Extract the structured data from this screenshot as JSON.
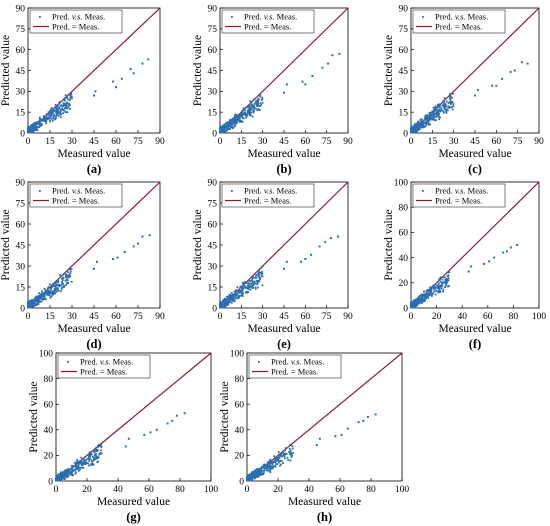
{
  "legend": {
    "scatter_label_pre": "Pred. ",
    "scatter_label_italic": "v.s.",
    "scatter_label_post": " Meas.",
    "line_label": "Pred.  =  Meas."
  },
  "colors": {
    "scatter": "#2a6fb0",
    "line": "#8b1a2b",
    "axis": "#000000"
  },
  "chart_data": [
    {
      "type": "scatter",
      "panel": "(a)",
      "xlabel": "Measured value",
      "ylabel": "Predicted value",
      "xlim": [
        0,
        90
      ],
      "ylim": [
        0,
        90
      ],
      "xticks": [
        "0",
        "15",
        "30",
        "45",
        "60",
        "75",
        "90"
      ],
      "yticks": [
        "0",
        "15",
        "30",
        "45",
        "60",
        "75",
        "90"
      ],
      "series": [
        {
          "name": "Pred. v.s. Meas.",
          "kind": "points",
          "cluster_max": 30,
          "points": [
            [
              45,
              27
            ],
            [
              46,
              30
            ],
            [
              58,
              37
            ],
            [
              60,
              33
            ],
            [
              64,
              39
            ],
            [
              70,
              46
            ],
            [
              72,
              43
            ],
            [
              78,
              50
            ],
            [
              82,
              53
            ]
          ]
        },
        {
          "name": "Pred. = Meas.",
          "kind": "line",
          "points": [
            [
              0,
              0
            ],
            [
              90,
              90
            ]
          ]
        }
      ]
    },
    {
      "type": "scatter",
      "panel": "(b)",
      "xlabel": "Measured value",
      "ylabel": "Predicted value",
      "xlim": [
        0,
        90
      ],
      "ylim": [
        0,
        90
      ],
      "xticks": [
        "0",
        "15",
        "30",
        "45",
        "60",
        "75",
        "90"
      ],
      "yticks": [
        "0",
        "15",
        "30",
        "45",
        "60",
        "75",
        "90"
      ],
      "series": [
        {
          "name": "Pred. v.s. Meas.",
          "kind": "points",
          "cluster_max": 30,
          "points": [
            [
              45,
              29
            ],
            [
              47,
              35
            ],
            [
              58,
              37
            ],
            [
              60,
              35
            ],
            [
              65,
              41
            ],
            [
              72,
              47
            ],
            [
              76,
              50
            ],
            [
              79,
              56
            ],
            [
              84,
              57
            ]
          ]
        },
        {
          "name": "Pred. = Meas.",
          "kind": "line",
          "points": [
            [
              0,
              0
            ],
            [
              90,
              90
            ]
          ]
        }
      ]
    },
    {
      "type": "scatter",
      "panel": "(c)",
      "xlabel": "Measured value",
      "ylabel": "Predicted value",
      "xlim": [
        0,
        90
      ],
      "ylim": [
        0,
        90
      ],
      "xticks": [
        "0",
        "15",
        "30",
        "45",
        "60",
        "75",
        "90"
      ],
      "yticks": [
        "0",
        "15",
        "30",
        "45",
        "60",
        "75",
        "90"
      ],
      "series": [
        {
          "name": "Pred. v.s. Meas.",
          "kind": "points",
          "cluster_max": 30,
          "points": [
            [
              45,
              27
            ],
            [
              47,
              31
            ],
            [
              57,
              34
            ],
            [
              60,
              34
            ],
            [
              64,
              39
            ],
            [
              70,
              44
            ],
            [
              73,
              45
            ],
            [
              78,
              51
            ],
            [
              82,
              50
            ]
          ]
        },
        {
          "name": "Pred. = Meas.",
          "kind": "line",
          "points": [
            [
              0,
              0
            ],
            [
              90,
              90
            ]
          ]
        }
      ]
    },
    {
      "type": "scatter",
      "panel": "(d)",
      "xlabel": "Measured value",
      "ylabel": "Predicted value",
      "xlim": [
        0,
        90
      ],
      "ylim": [
        0,
        90
      ],
      "xticks": [
        "0",
        "15",
        "30",
        "45",
        "60",
        "75",
        "90"
      ],
      "yticks": [
        "0",
        "15",
        "30",
        "45",
        "60",
        "75",
        "90"
      ],
      "series": [
        {
          "name": "Pred. v.s. Meas.",
          "kind": "points",
          "cluster_max": 30,
          "points": [
            [
              45,
              28
            ],
            [
              47,
              33
            ],
            [
              58,
              35
            ],
            [
              61,
              36
            ],
            [
              66,
              40
            ],
            [
              72,
              44
            ],
            [
              75,
              46
            ],
            [
              78,
              51
            ],
            [
              83,
              52
            ]
          ]
        },
        {
          "name": "Pred. = Meas.",
          "kind": "line",
          "points": [
            [
              0,
              0
            ],
            [
              90,
              90
            ]
          ]
        }
      ]
    },
    {
      "type": "scatter",
      "panel": "(e)",
      "xlabel": "Measured value",
      "ylabel": "Predicted value",
      "xlim": [
        0,
        90
      ],
      "ylim": [
        0,
        90
      ],
      "xticks": [
        "0",
        "15",
        "30",
        "45",
        "60",
        "75",
        "90"
      ],
      "yticks": [
        "0",
        "15",
        "30",
        "45",
        "60",
        "75",
        "90"
      ],
      "series": [
        {
          "name": "Pred. v.s. Meas.",
          "kind": "points",
          "cluster_max": 30,
          "points": [
            [
              45,
              28
            ],
            [
              47,
              33
            ],
            [
              57,
              33
            ],
            [
              60,
              35
            ],
            [
              64,
              38
            ],
            [
              70,
              44
            ],
            [
              74,
              47
            ],
            [
              78,
              50
            ],
            [
              83,
              51
            ]
          ]
        },
        {
          "name": "Pred. = Meas.",
          "kind": "line",
          "points": [
            [
              0,
              0
            ],
            [
              90,
              90
            ]
          ]
        }
      ]
    },
    {
      "type": "scatter",
      "panel": "(f)",
      "xlabel": "Measured value",
      "ylabel": "Predicted value",
      "xlim": [
        0,
        100
      ],
      "ylim": [
        0,
        100
      ],
      "xticks": [
        "0",
        "20",
        "40",
        "60",
        "80",
        "100"
      ],
      "yticks": [
        "0",
        "20",
        "40",
        "60",
        "80",
        "100"
      ],
      "series": [
        {
          "name": "Pred. v.s. Meas.",
          "kind": "points",
          "cluster_max": 30,
          "points": [
            [
              45,
              29
            ],
            [
              47,
              33
            ],
            [
              57,
              35
            ],
            [
              61,
              37
            ],
            [
              65,
              40
            ],
            [
              72,
              44
            ],
            [
              75,
              45
            ],
            [
              78,
              48
            ],
            [
              83,
              50
            ]
          ]
        },
        {
          "name": "Pred. = Meas.",
          "kind": "line",
          "points": [
            [
              0,
              0
            ],
            [
              100,
              100
            ]
          ]
        }
      ]
    },
    {
      "type": "scatter",
      "panel": "(g)",
      "xlabel": "Measured value",
      "ylabel": "Predicted value",
      "xlim": [
        0,
        100
      ],
      "ylim": [
        0,
        100
      ],
      "xticks": [
        "0",
        "20",
        "40",
        "60",
        "80",
        "100"
      ],
      "yticks": [
        "0",
        "20",
        "40",
        "60",
        "80",
        "100"
      ],
      "series": [
        {
          "name": "Pred. v.s. Meas.",
          "kind": "points",
          "cluster_max": 30,
          "points": [
            [
              45,
              27
            ],
            [
              47,
              33
            ],
            [
              57,
              36
            ],
            [
              61,
              38
            ],
            [
              65,
              40
            ],
            [
              72,
              45
            ],
            [
              75,
              47
            ],
            [
              78,
              51
            ],
            [
              83,
              53
            ]
          ]
        },
        {
          "name": "Pred. = Meas.",
          "kind": "line",
          "points": [
            [
              0,
              0
            ],
            [
              100,
              100
            ]
          ]
        }
      ]
    },
    {
      "type": "scatter",
      "panel": "(h)",
      "xlabel": "Measured value",
      "ylabel": "Predicted value",
      "xlim": [
        0,
        100
      ],
      "ylim": [
        0,
        100
      ],
      "xticks": [
        "0",
        "20",
        "40",
        "60",
        "80",
        "100"
      ],
      "yticks": [
        "0",
        "20",
        "40",
        "60",
        "80",
        "100"
      ],
      "series": [
        {
          "name": "Pred. v.s. Meas.",
          "kind": "points",
          "cluster_max": 30,
          "points": [
            [
              45,
              28
            ],
            [
              47,
              33
            ],
            [
              57,
              35
            ],
            [
              61,
              36
            ],
            [
              65,
              41
            ],
            [
              72,
              46
            ],
            [
              75,
              47
            ],
            [
              78,
              50
            ],
            [
              83,
              52
            ]
          ]
        },
        {
          "name": "Pred. = Meas.",
          "kind": "line",
          "points": [
            [
              0,
              0
            ],
            [
              100,
              100
            ]
          ]
        }
      ]
    }
  ]
}
